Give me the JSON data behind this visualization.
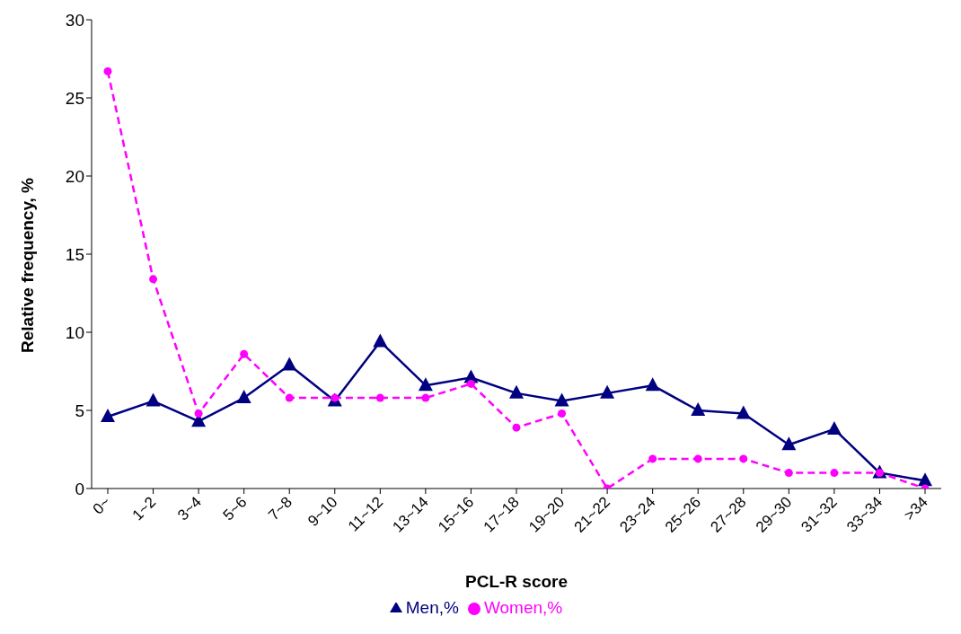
{
  "chart_data": {
    "type": "line",
    "xlabel": "PCL-R score",
    "ylabel": "Relative frequency, %",
    "categories": [
      "0~",
      "1~2",
      "3~4",
      "5~6",
      "7~8",
      "9~10",
      "11~12",
      "13~14",
      "15~16",
      "17~18",
      "19~20",
      "21~22",
      "23~24",
      "25~26",
      "27~28",
      "29~30",
      "31~32",
      "33~34",
      ">34"
    ],
    "ylim": [
      0,
      30
    ],
    "yticks": [
      0,
      5,
      10,
      15,
      20,
      25,
      30
    ],
    "grid": false,
    "legend": "bottom",
    "series": [
      {
        "name": "Men,%",
        "color": "#000080",
        "marker": "triangle",
        "line_style": "solid",
        "values": [
          4.6,
          5.6,
          4.3,
          5.8,
          7.9,
          5.6,
          9.4,
          6.6,
          7.1,
          6.1,
          5.6,
          6.1,
          6.6,
          5.0,
          4.8,
          2.8,
          3.8,
          1.0,
          0.5
        ]
      },
      {
        "name": "Women,%",
        "color": "#ff00ff",
        "marker": "circle",
        "line_style": "dashed",
        "values": [
          26.7,
          13.4,
          4.8,
          8.6,
          5.8,
          5.8,
          5.8,
          5.8,
          6.7,
          3.9,
          4.8,
          0,
          1.9,
          1.9,
          1.9,
          1.0,
          1.0,
          1.0,
          0
        ]
      }
    ]
  }
}
